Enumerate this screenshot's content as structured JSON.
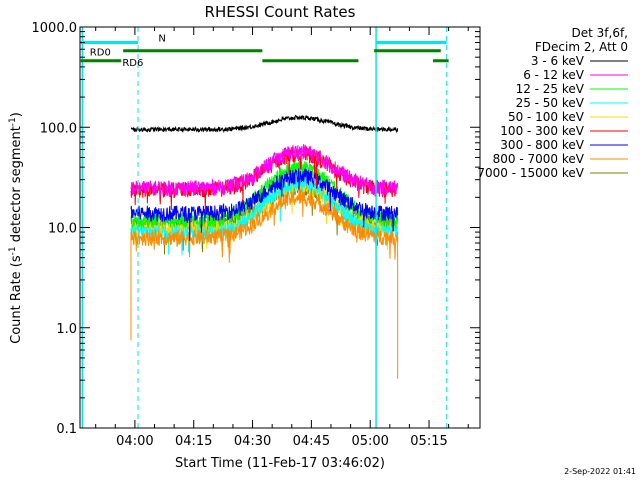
{
  "chart_data": {
    "type": "line",
    "title": "RHESSI Count Rates",
    "xlabel": "Start Time (11-Feb-17 03:46:02)",
    "ylabel_main": "Count Rate (s",
    "ylabel_sup1": "-1",
    "ylabel_mid": " detector segment",
    "ylabel_sup2": "-1",
    "ylabel_end": ")",
    "y_scale": "log",
    "ylim": [
      0.1,
      1000
    ],
    "xlim_minutes": [
      226,
      328
    ],
    "x_ticks": [
      {
        "m": 240,
        "label": "04:00"
      },
      {
        "m": 255,
        "label": "04:15"
      },
      {
        "m": 270,
        "label": "04:30"
      },
      {
        "m": 285,
        "label": "04:45"
      },
      {
        "m": 300,
        "label": "05:00"
      },
      {
        "m": 315,
        "label": "05:15"
      }
    ],
    "y_ticks": [
      {
        "v": 1000,
        "label": "1000.0"
      },
      {
        "v": 100,
        "label": "100.0"
      },
      {
        "v": 10,
        "label": "10.0"
      },
      {
        "v": 1,
        "label": "1.0"
      },
      {
        "v": 0.1,
        "label": "0.1"
      }
    ],
    "legend": {
      "header": [
        "Det 3f,6f,",
        "FDecim 2, Att 0"
      ],
      "placement": "right"
    },
    "series": [
      {
        "name": "3 - 6 keV",
        "color": "#000000",
        "start": 239,
        "end": 307,
        "base": 95,
        "peak": 125
      },
      {
        "name": "6 - 12 keV",
        "color": "#ff00ff",
        "start": 239,
        "end": 307,
        "base": 25,
        "peak": 58
      },
      {
        "name": "12 - 25 keV",
        "color": "#00ff00",
        "start": 239,
        "end": 307,
        "base": 12,
        "peak": 40
      },
      {
        "name": "25 - 50 keV",
        "color": "#00ffff",
        "start": 239,
        "end": 307,
        "base": 9,
        "peak": 28
      },
      {
        "name": "50 - 100 keV",
        "color": "#ffd700",
        "start": 239,
        "end": 307,
        "base": 10,
        "peak": 26
      },
      {
        "name": "100 - 300 keV",
        "color": "#ff0000",
        "start": 239,
        "end": 307,
        "base": 24,
        "peak": 55
      },
      {
        "name": "300 - 800 keV",
        "color": "#0000ff",
        "start": 239,
        "end": 307,
        "base": 14,
        "peak": 33
      },
      {
        "name": "800 - 7000 keV",
        "color": "#ff8c00",
        "start": 239,
        "end": 307,
        "base": 8,
        "peak": 20
      },
      {
        "name": "7000 - 15000 keV",
        "color": "#808000",
        "start": 239,
        "end": 307,
        "base": 11,
        "peak": 25
      }
    ],
    "attenuator_annotations": {
      "N_label": "N",
      "RD0_label": "RD0",
      "RD6_label": "RD6"
    },
    "timestamp": "2-Sep-2022 01:41"
  }
}
